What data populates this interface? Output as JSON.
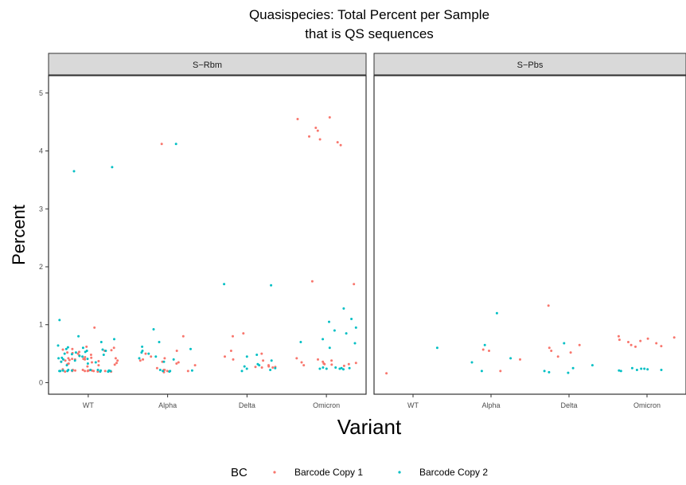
{
  "chart_data": {
    "type": "scatter",
    "title_line1": "Quasispecies: Total Percent per Sample",
    "title_line2": "that is QS sequences",
    "xlabel": "Variant",
    "ylabel": "Percent",
    "categories": [
      "WT",
      "Alpha",
      "Delta",
      "Omicron"
    ],
    "yticks": [
      0,
      1,
      2,
      3,
      4,
      5
    ],
    "ylim": [
      -0.2,
      5.3
    ],
    "grid": false,
    "legend": {
      "title": "BC",
      "placement": "bottom",
      "entries": [
        "Barcode Copy 1",
        "Barcode Copy 2"
      ]
    },
    "colors": {
      "Barcode Copy 1": "#F8766D",
      "Barcode Copy 2": "#00BFC4"
    },
    "panels": [
      {
        "name": "S−Rbm",
        "series": [
          {
            "name": "Barcode Copy 1",
            "points": [
              [
                "WT",
                0.2
              ],
              [
                "WT",
                0.21
              ],
              [
                "WT",
                0.19
              ],
              [
                "WT",
                0.22
              ],
              [
                "WT",
                0.2
              ],
              [
                "WT",
                0.21
              ],
              [
                "WT",
                0.23
              ],
              [
                "WT",
                0.19
              ],
              [
                "WT",
                0.2
              ],
              [
                "WT",
                0.22
              ],
              [
                "WT",
                0.21
              ],
              [
                "WT",
                0.2
              ],
              [
                "WT",
                0.19
              ],
              [
                "WT",
                0.22
              ],
              [
                "WT",
                0.21
              ],
              [
                "WT",
                0.2
              ],
              [
                "WT",
                0.3
              ],
              [
                "WT",
                0.32
              ],
              [
                "WT",
                0.35
              ],
              [
                "WT",
                0.28
              ],
              [
                "WT",
                0.33
              ],
              [
                "WT",
                0.36
              ],
              [
                "WT",
                0.31
              ],
              [
                "WT",
                0.34
              ],
              [
                "WT",
                0.38
              ],
              [
                "WT",
                0.4
              ],
              [
                "WT",
                0.42
              ],
              [
                "WT",
                0.39
              ],
              [
                "WT",
                0.41
              ],
              [
                "WT",
                0.43
              ],
              [
                "WT",
                0.37
              ],
              [
                "WT",
                0.4
              ],
              [
                "WT",
                0.42
              ],
              [
                "WT",
                0.38
              ],
              [
                "WT",
                0.44
              ],
              [
                "WT",
                0.41
              ],
              [
                "WT",
                0.48
              ],
              [
                "WT",
                0.5
              ],
              [
                "WT",
                0.52
              ],
              [
                "WT",
                0.55
              ],
              [
                "WT",
                0.47
              ],
              [
                "WT",
                0.53
              ],
              [
                "WT",
                0.57
              ],
              [
                "WT",
                0.6
              ],
              [
                "WT",
                0.51
              ],
              [
                "WT",
                0.56
              ],
              [
                "WT",
                0.62
              ],
              [
                "WT",
                0.58
              ],
              [
                "WT",
                0.95
              ],
              [
                "Alpha",
                4.12
              ],
              [
                "Alpha",
                0.8
              ],
              [
                "Alpha",
                0.55
              ],
              [
                "Alpha",
                0.5
              ],
              [
                "Alpha",
                0.45
              ],
              [
                "Alpha",
                0.42
              ],
              [
                "Alpha",
                0.4
              ],
              [
                "Alpha",
                0.38
              ],
              [
                "Alpha",
                0.36
              ],
              [
                "Alpha",
                0.35
              ],
              [
                "Alpha",
                0.33
              ],
              [
                "Alpha",
                0.3
              ],
              [
                "Alpha",
                0.25
              ],
              [
                "Alpha",
                0.22
              ],
              [
                "Alpha",
                0.2
              ],
              [
                "Alpha",
                0.18
              ],
              [
                "Alpha",
                0.2
              ],
              [
                "Alpha",
                0.22
              ],
              [
                "Delta",
                0.85
              ],
              [
                "Delta",
                0.8
              ],
              [
                "Delta",
                0.55
              ],
              [
                "Delta",
                0.5
              ],
              [
                "Delta",
                0.45
              ],
              [
                "Delta",
                0.4
              ],
              [
                "Delta",
                0.38
              ],
              [
                "Delta",
                0.3
              ],
              [
                "Delta",
                0.27
              ],
              [
                "Delta",
                0.26
              ],
              [
                "Delta",
                0.28
              ],
              [
                "Delta",
                0.26
              ],
              [
                "Delta",
                0.27
              ],
              [
                "Omicron",
                4.58
              ],
              [
                "Omicron",
                4.55
              ],
              [
                "Omicron",
                4.4
              ],
              [
                "Omicron",
                4.35
              ],
              [
                "Omicron",
                4.25
              ],
              [
                "Omicron",
                4.2
              ],
              [
                "Omicron",
                4.15
              ],
              [
                "Omicron",
                4.1
              ],
              [
                "Omicron",
                1.75
              ],
              [
                "Omicron",
                1.7
              ],
              [
                "Omicron",
                0.42
              ],
              [
                "Omicron",
                0.4
              ],
              [
                "Omicron",
                0.38
              ],
              [
                "Omicron",
                0.36
              ],
              [
                "Omicron",
                0.35
              ],
              [
                "Omicron",
                0.34
              ],
              [
                "Omicron",
                0.33
              ],
              [
                "Omicron",
                0.32
              ],
              [
                "Omicron",
                0.31
              ],
              [
                "Omicron",
                0.32
              ],
              [
                "Omicron",
                0.3
              ],
              [
                "Omicron",
                0.29
              ]
            ]
          },
          {
            "name": "Barcode Copy 2",
            "points": [
              [
                "WT",
                3.72
              ],
              [
                "WT",
                3.65
              ],
              [
                "WT",
                1.08
              ],
              [
                "WT",
                0.2
              ],
              [
                "WT",
                0.21
              ],
              [
                "WT",
                0.19
              ],
              [
                "WT",
                0.22
              ],
              [
                "WT",
                0.2
              ],
              [
                "WT",
                0.21
              ],
              [
                "WT",
                0.19
              ],
              [
                "WT",
                0.22
              ],
              [
                "WT",
                0.2
              ],
              [
                "WT",
                0.21
              ],
              [
                "WT",
                0.2
              ],
              [
                "WT",
                0.22
              ],
              [
                "WT",
                0.19
              ],
              [
                "WT",
                0.21
              ],
              [
                "WT",
                0.3
              ],
              [
                "WT",
                0.33
              ],
              [
                "WT",
                0.36
              ],
              [
                "WT",
                0.38
              ],
              [
                "WT",
                0.41
              ],
              [
                "WT",
                0.43
              ],
              [
                "WT",
                0.46
              ],
              [
                "WT",
                0.49
              ],
              [
                "WT",
                0.52
              ],
              [
                "WT",
                0.55
              ],
              [
                "WT",
                0.58
              ],
              [
                "WT",
                0.61
              ],
              [
                "WT",
                0.64
              ],
              [
                "WT",
                0.35
              ],
              [
                "WT",
                0.4
              ],
              [
                "WT",
                0.45
              ],
              [
                "WT",
                0.5
              ],
              [
                "WT",
                0.55
              ],
              [
                "WT",
                0.6
              ],
              [
                "WT",
                0.42
              ],
              [
                "WT",
                0.48
              ],
              [
                "WT",
                0.53
              ],
              [
                "WT",
                0.57
              ],
              [
                "WT",
                0.8
              ],
              [
                "WT",
                0.75
              ],
              [
                "WT",
                0.7
              ],
              [
                "Alpha",
                4.12
              ],
              [
                "Alpha",
                0.92
              ],
              [
                "Alpha",
                0.7
              ],
              [
                "Alpha",
                0.62
              ],
              [
                "Alpha",
                0.58
              ],
              [
                "Alpha",
                0.55
              ],
              [
                "Alpha",
                0.52
              ],
              [
                "Alpha",
                0.5
              ],
              [
                "Alpha",
                0.45
              ],
              [
                "Alpha",
                0.42
              ],
              [
                "Alpha",
                0.4
              ],
              [
                "Alpha",
                0.36
              ],
              [
                "Alpha",
                0.22
              ],
              [
                "Alpha",
                0.2
              ],
              [
                "Alpha",
                0.21
              ],
              [
                "Alpha",
                0.19
              ],
              [
                "Alpha",
                0.2
              ],
              [
                "Delta",
                1.7
              ],
              [
                "Delta",
                1.68
              ],
              [
                "Delta",
                0.48
              ],
              [
                "Delta",
                0.45
              ],
              [
                "Delta",
                0.38
              ],
              [
                "Delta",
                0.32
              ],
              [
                "Delta",
                0.28
              ],
              [
                "Delta",
                0.25
              ],
              [
                "Delta",
                0.22
              ],
              [
                "Delta",
                0.2
              ],
              [
                "Delta",
                0.24
              ],
              [
                "Delta",
                0.3
              ],
              [
                "Omicron",
                1.28
              ],
              [
                "Omicron",
                1.1
              ],
              [
                "Omicron",
                1.05
              ],
              [
                "Omicron",
                0.95
              ],
              [
                "Omicron",
                0.9
              ],
              [
                "Omicron",
                0.85
              ],
              [
                "Omicron",
                0.75
              ],
              [
                "Omicron",
                0.7
              ],
              [
                "Omicron",
                0.68
              ],
              [
                "Omicron",
                0.6
              ],
              [
                "Omicron",
                0.26
              ],
              [
                "Omicron",
                0.24
              ],
              [
                "Omicron",
                0.25
              ],
              [
                "Omicron",
                0.23
              ],
              [
                "Omicron",
                0.24
              ],
              [
                "Omicron",
                0.26
              ],
              [
                "Omicron",
                0.25
              ],
              [
                "Omicron",
                0.24
              ]
            ]
          }
        ]
      },
      {
        "name": "S−Pbs",
        "series": [
          {
            "name": "Barcode Copy 1",
            "points": [
              [
                "WT",
                0.16
              ],
              [
                "Alpha",
                0.57
              ],
              [
                "Alpha",
                0.55
              ],
              [
                "Alpha",
                0.4
              ],
              [
                "Alpha",
                0.2
              ],
              [
                "Delta",
                1.33
              ],
              [
                "Delta",
                0.65
              ],
              [
                "Delta",
                0.6
              ],
              [
                "Delta",
                0.55
              ],
              [
                "Delta",
                0.52
              ],
              [
                "Delta",
                0.45
              ],
              [
                "Omicron",
                0.8
              ],
              [
                "Omicron",
                0.78
              ],
              [
                "Omicron",
                0.76
              ],
              [
                "Omicron",
                0.74
              ],
              [
                "Omicron",
                0.72
              ],
              [
                "Omicron",
                0.7
              ],
              [
                "Omicron",
                0.68
              ],
              [
                "Omicron",
                0.65
              ],
              [
                "Omicron",
                0.63
              ],
              [
                "Omicron",
                0.62
              ]
            ]
          },
          {
            "name": "Barcode Copy 2",
            "points": [
              [
                "WT",
                0.6
              ],
              [
                "Alpha",
                1.2
              ],
              [
                "Alpha",
                0.65
              ],
              [
                "Alpha",
                0.42
              ],
              [
                "Alpha",
                0.35
              ],
              [
                "Alpha",
                0.2
              ],
              [
                "Delta",
                0.68
              ],
              [
                "Delta",
                0.3
              ],
              [
                "Delta",
                0.25
              ],
              [
                "Delta",
                0.2
              ],
              [
                "Delta",
                0.18
              ],
              [
                "Delta",
                0.17
              ],
              [
                "Omicron",
                0.25
              ],
              [
                "Omicron",
                0.24
              ],
              [
                "Omicron",
                0.23
              ],
              [
                "Omicron",
                0.22
              ],
              [
                "Omicron",
                0.21
              ],
              [
                "Omicron",
                0.2
              ],
              [
                "Omicron",
                0.22
              ],
              [
                "Omicron",
                0.24
              ]
            ]
          }
        ]
      }
    ]
  }
}
